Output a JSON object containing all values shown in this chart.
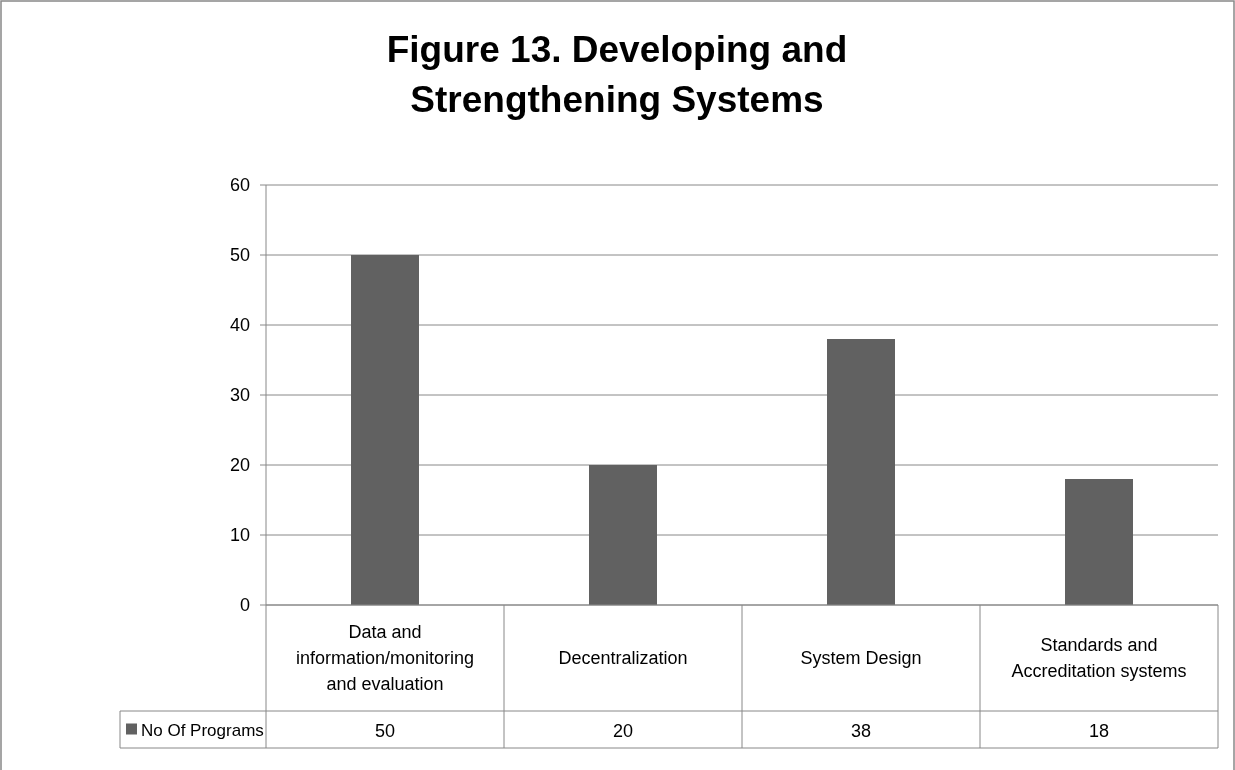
{
  "chart_data": {
    "type": "bar",
    "title": "Figure 13. Developing and Strengthening Systems",
    "categories": [
      "Data and information/monitoring and evaluation",
      "Decentralization",
      "System Design",
      "Standards and Accreditation systems"
    ],
    "series": [
      {
        "name": "No Of Programs",
        "color": "#616161",
        "values": [
          50,
          20,
          38,
          18
        ]
      }
    ],
    "ylim": [
      0,
      60
    ],
    "yticks": [
      0,
      10,
      20,
      30,
      40,
      50,
      60
    ],
    "grid": "y",
    "legend": "bottom",
    "data_labels": true
  }
}
